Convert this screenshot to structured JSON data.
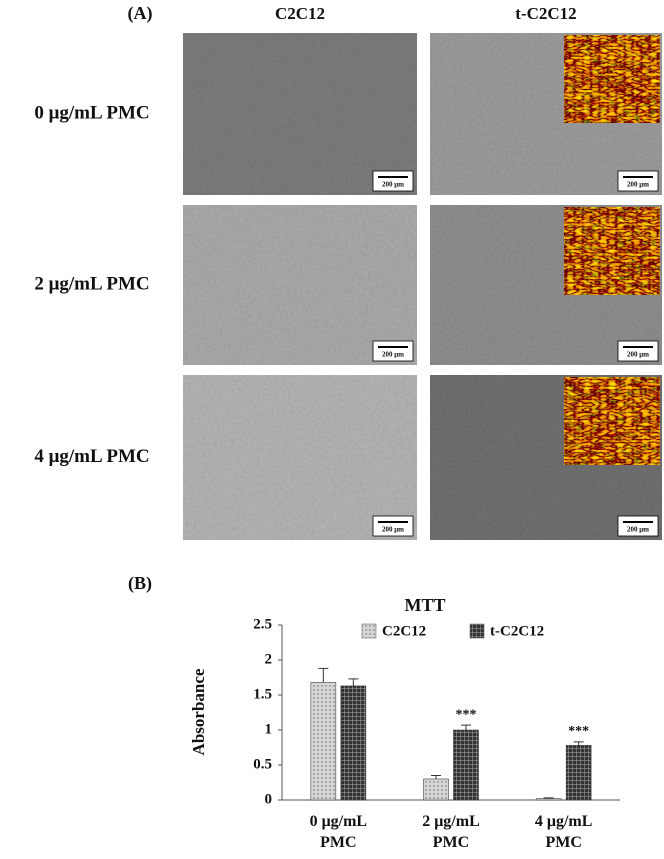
{
  "panel_a": {
    "label": "(A)",
    "columns": [
      "C2C12",
      "t-C2C12"
    ],
    "rows": [
      "0 μg/mL PMC",
      "2 μg/mL PMC",
      "4 μg/mL PMC"
    ],
    "scale_bar": "200 μm"
  },
  "panel_b": {
    "label": "(B)"
  },
  "chart_data": {
    "type": "bar",
    "title": "MTT",
    "y_label": "Absorbance",
    "categories": [
      "0 μg/mL PMC",
      "2 μg/mL PMC",
      "4 μg/mL PMC"
    ],
    "series": [
      {
        "name": "C2C12",
        "color": "#d6d6d6",
        "values": [
          1.68,
          0.3,
          0.02
        ],
        "errors": [
          0.2,
          0.05,
          0.01
        ]
      },
      {
        "name": "t-C2C12",
        "color": "#333333",
        "values": [
          1.63,
          1.0,
          0.78
        ],
        "errors": [
          0.1,
          0.07,
          0.05
        ],
        "significance": [
          null,
          "***",
          "***"
        ]
      }
    ],
    "ylim": [
      0,
      2.5
    ],
    "yticks": [
      0,
      0.5,
      1,
      1.5,
      2,
      2.5
    ],
    "grid": false
  }
}
